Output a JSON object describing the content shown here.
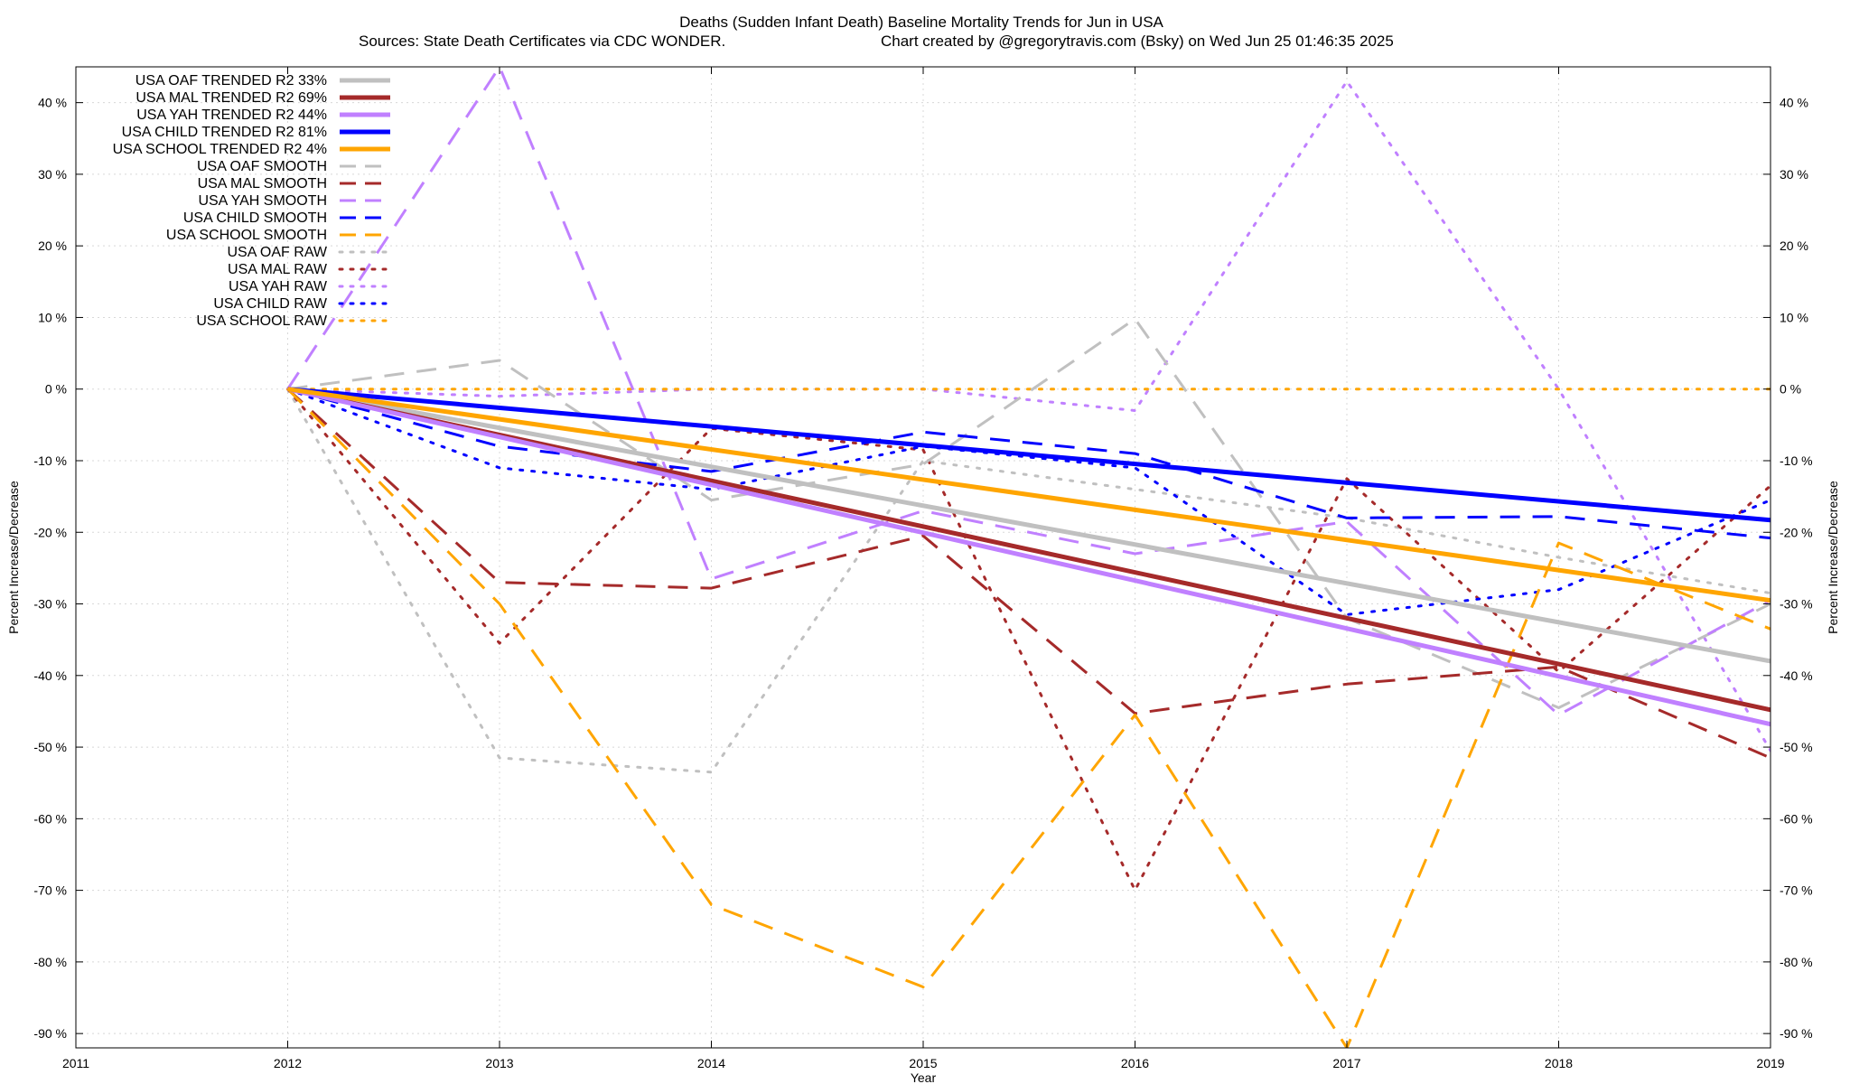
{
  "chart_data": {
    "type": "line",
    "title": "Deaths (Sudden Infant Death)  Baseline Mortality Trends for Jun in USA",
    "subtitle_left": "Sources: State Death Certificates via CDC WONDER.",
    "subtitle_right": "Chart created by @gregorytravis.com (Bsky) on Wed Jun 25 01:46:35 2025",
    "xlabel": "Year",
    "ylabel_left": "Percent Increase/Decrease",
    "ylabel_right": "Percent Increase/Decrease",
    "xlim": [
      2011,
      2019
    ],
    "ylim": [
      -92,
      45
    ],
    "x_ticks": [
      2011,
      2012,
      2013,
      2014,
      2015,
      2016,
      2017,
      2018,
      2019
    ],
    "y_ticks": [
      40,
      30,
      20,
      10,
      0,
      -10,
      -20,
      -30,
      -40,
      -50,
      -60,
      -70,
      -80,
      -90
    ],
    "y_tick_suffix": " %",
    "grid": true,
    "legend_position": "top-left",
    "series": [
      {
        "name": "USA OAF TRENDED R2  33%",
        "color": "#c0c0c0",
        "style": "solid",
        "x": [
          2012,
          2019
        ],
        "values": [
          0,
          -38
        ]
      },
      {
        "name": "USA MAL TRENDED R2  69%",
        "color": "#a52a2a",
        "style": "solid",
        "x": [
          2012,
          2019
        ],
        "values": [
          0,
          -44.8
        ]
      },
      {
        "name": "USA YAH TRENDED R2  44%",
        "color": "#c080ff",
        "style": "solid",
        "x": [
          2012,
          2019
        ],
        "values": [
          0,
          -46.8
        ]
      },
      {
        "name": "USA CHILD TRENDED R2  81%",
        "color": "#0000ff",
        "style": "solid",
        "x": [
          2012,
          2019
        ],
        "values": [
          0,
          -18.3
        ]
      },
      {
        "name": "USA SCHOOL TRENDED R2   4%",
        "color": "#ffa500",
        "style": "solid",
        "x": [
          2012,
          2019
        ],
        "values": [
          0,
          -29.5
        ]
      },
      {
        "name": "USA OAF SMOOTH",
        "color": "#c0c0c0",
        "style": "dashed",
        "x": [
          2012,
          2013,
          2014,
          2015,
          2016,
          2017,
          2018,
          2019
        ],
        "values": [
          0,
          4,
          -15.5,
          -10.5,
          9.8,
          -32,
          -44.5,
          -30
        ]
      },
      {
        "name": "USA MAL SMOOTH",
        "color": "#a52a2a",
        "style": "dashed",
        "x": [
          2012,
          2013,
          2014,
          2015,
          2016,
          2017,
          2018,
          2019
        ],
        "values": [
          0,
          -27,
          -27.8,
          -20.5,
          -45.3,
          -41.2,
          -38.8,
          -51.5
        ]
      },
      {
        "name": "USA YAH SMOOTH",
        "color": "#c080ff",
        "style": "dashed",
        "x": [
          2012,
          2013,
          2014,
          2015,
          2016,
          2017,
          2018,
          2019
        ],
        "values": [
          0,
          45,
          -26.5,
          -17,
          -23,
          -18.5,
          -45.5,
          -29.5
        ]
      },
      {
        "name": "USA CHILD SMOOTH",
        "color": "#0000ff",
        "style": "dashed",
        "x": [
          2012,
          2013,
          2014,
          2015,
          2016,
          2017,
          2018,
          2019
        ],
        "values": [
          0,
          -8,
          -11.5,
          -6,
          -9,
          -18,
          -17.8,
          -20.8
        ]
      },
      {
        "name": "USA SCHOOL SMOOTH",
        "color": "#ffa500",
        "style": "dashed",
        "x": [
          2012,
          2013,
          2014,
          2015,
          2016,
          2017,
          2018,
          2019
        ],
        "values": [
          0,
          -30,
          -72,
          -83.5,
          -45.5,
          -92,
          -21.5,
          -33.5
        ]
      },
      {
        "name": "USA OAF RAW",
        "color": "#c0c0c0",
        "style": "dotted",
        "x": [
          2012,
          2013,
          2014,
          2015,
          2016,
          2017,
          2018,
          2019
        ],
        "values": [
          0,
          -51.5,
          -53.5,
          -10,
          -14,
          -18,
          -23.5,
          -28.5
        ]
      },
      {
        "name": "USA MAL RAW",
        "color": "#a52a2a",
        "style": "dotted",
        "x": [
          2012,
          2013,
          2014,
          2015,
          2016,
          2017,
          2018,
          2019
        ],
        "values": [
          0,
          -35.5,
          -5.5,
          -8.5,
          -70,
          -12.5,
          -39.5,
          -13.5
        ]
      },
      {
        "name": "USA YAH RAW",
        "color": "#c080ff",
        "style": "dotted",
        "x": [
          2012,
          2013,
          2014,
          2015,
          2016,
          2017,
          2018,
          2019
        ],
        "values": [
          0,
          -1,
          0,
          0,
          -3,
          43,
          0,
          -50.5
        ]
      },
      {
        "name": "USA CHILD RAW",
        "color": "#0000ff",
        "style": "dotted",
        "x": [
          2012,
          2013,
          2014,
          2015,
          2016,
          2017,
          2018,
          2019
        ],
        "values": [
          0,
          -11,
          -14,
          -8,
          -11,
          -31.5,
          -28,
          -15.5
        ]
      },
      {
        "name": "USA SCHOOL RAW",
        "color": "#ffa500",
        "style": "dotted",
        "x": [
          2012,
          2013,
          2014,
          2015,
          2016,
          2017,
          2018,
          2019
        ],
        "values": [
          0,
          0,
          0,
          0,
          0,
          0,
          0,
          0
        ]
      }
    ]
  }
}
